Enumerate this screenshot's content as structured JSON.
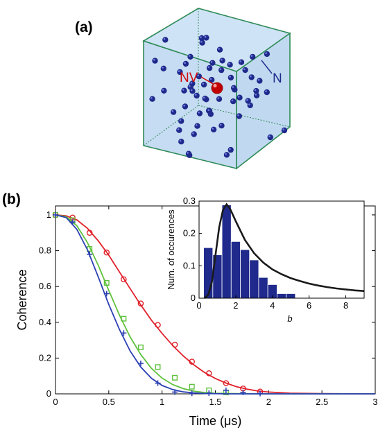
{
  "panel_a": {
    "label": "(a)",
    "nv_label": "NV",
    "n_label": "N",
    "colors": {
      "cube_edge": "#2e8b57",
      "cube_fill": "#c6dcf2",
      "nitrogen": "#1f2a8c",
      "nv": "#d10a0a"
    },
    "nitrogen_atom_count": 64
  },
  "panel_b": {
    "label": "(b)",
    "chart_data": [
      {
        "type": "line",
        "xlabel": "Time (μs)",
        "ylabel": "Coherence",
        "xlim": [
          0,
          3
        ],
        "ylim": [
          0,
          1.05
        ],
        "xticks": [
          "0",
          "0.5",
          "1",
          "1.5",
          "2",
          "2.5",
          "3"
        ],
        "yticks": [
          "0",
          "0.2",
          "0.4",
          "0.6",
          "0.8",
          "1"
        ],
        "grid": false,
        "series": [
          {
            "color": "#e0202a",
            "marker": "circle",
            "points": [
              [
                0,
                1.0
              ],
              [
                0.16,
                0.985
              ],
              [
                0.32,
                0.9
              ],
              [
                0.48,
                0.79
              ],
              [
                0.64,
                0.64
              ],
              [
                0.8,
                0.505
              ],
              [
                0.96,
                0.385
              ],
              [
                1.12,
                0.275
              ],
              [
                1.28,
                0.18
              ],
              [
                1.44,
                0.115
              ],
              [
                1.6,
                0.06
              ],
              [
                1.76,
                0.03
              ],
              [
                1.92,
                0.013
              ]
            ],
            "curve": [
              [
                0,
                1.0
              ],
              [
                0.1,
                0.995
              ],
              [
                0.2,
                0.972
              ],
              [
                0.3,
                0.925
              ],
              [
                0.4,
                0.856
              ],
              [
                0.5,
                0.775
              ],
              [
                0.6,
                0.681
              ],
              [
                0.7,
                0.588
              ],
              [
                0.8,
                0.497
              ],
              [
                0.9,
                0.412
              ],
              [
                1.0,
                0.338
              ],
              [
                1.1,
                0.27
              ],
              [
                1.2,
                0.211
              ],
              [
                1.3,
                0.161
              ],
              [
                1.4,
                0.119
              ],
              [
                1.5,
                0.086
              ],
              [
                1.6,
                0.06
              ],
              [
                1.7,
                0.04
              ],
              [
                1.8,
                0.026
              ],
              [
                1.9,
                0.016
              ],
              [
                2.0,
                0.01
              ],
              [
                2.2,
                0.004
              ],
              [
                2.5,
                0.001
              ],
              [
                3.0,
                0.0
              ]
            ]
          },
          {
            "color": "#5ec13c",
            "marker": "square",
            "points": [
              [
                0,
                1.0
              ],
              [
                0.16,
                0.97
              ],
              [
                0.32,
                0.81
              ],
              [
                0.48,
                0.62
              ],
              [
                0.64,
                0.42
              ],
              [
                0.8,
                0.26
              ],
              [
                0.96,
                0.15
              ],
              [
                1.12,
                0.09
              ],
              [
                1.28,
                0.04
              ],
              [
                1.44,
                0.02
              ],
              [
                1.6,
                0.008
              ]
            ],
            "curve": [
              [
                0,
                1.0
              ],
              [
                0.1,
                0.99
              ],
              [
                0.2,
                0.94
              ],
              [
                0.3,
                0.845
              ],
              [
                0.4,
                0.72
              ],
              [
                0.5,
                0.578
              ],
              [
                0.6,
                0.44
              ],
              [
                0.7,
                0.318
              ],
              [
                0.8,
                0.22
              ],
              [
                0.9,
                0.143
              ],
              [
                1.0,
                0.088
              ],
              [
                1.1,
                0.052
              ],
              [
                1.2,
                0.029
              ],
              [
                1.3,
                0.015
              ],
              [
                1.4,
                0.007
              ],
              [
                1.5,
                0.003
              ],
              [
                1.7,
                0.001
              ],
              [
                2.0,
                0.0
              ],
              [
                3.0,
                0.0
              ]
            ]
          },
          {
            "color": "#2b3fb3",
            "marker": "plus",
            "points": [
              [
                0,
                1.0
              ],
              [
                0.16,
                0.96
              ],
              [
                0.32,
                0.78
              ],
              [
                0.48,
                0.56
              ],
              [
                0.64,
                0.34
              ],
              [
                0.8,
                0.17
              ],
              [
                0.96,
                0.06
              ],
              [
                1.12,
                0.01
              ],
              [
                1.28,
                0.003
              ],
              [
                1.44,
                0.004
              ],
              [
                1.6,
                0.02
              ],
              [
                1.76,
                0.008
              ],
              [
                1.92,
                0.002
              ]
            ],
            "curve": [
              [
                0,
                1.0
              ],
              [
                0.1,
                0.985
              ],
              [
                0.2,
                0.92
              ],
              [
                0.3,
                0.805
              ],
              [
                0.4,
                0.655
              ],
              [
                0.5,
                0.5
              ],
              [
                0.6,
                0.36
              ],
              [
                0.7,
                0.24
              ],
              [
                0.8,
                0.15
              ],
              [
                0.9,
                0.087
              ],
              [
                1.0,
                0.047
              ],
              [
                1.1,
                0.024
              ],
              [
                1.2,
                0.011
              ],
              [
                1.3,
                0.005
              ],
              [
                1.4,
                0.002
              ],
              [
                1.6,
                0.0
              ],
              [
                3.0,
                0.0
              ]
            ]
          }
        ]
      },
      {
        "type": "bar",
        "xlabel": "b",
        "ylabel": "Num. of occurences",
        "xlim": [
          0,
          9
        ],
        "ylim": [
          0,
          0.3
        ],
        "xticks": [
          "0",
          "2",
          "4",
          "6",
          "8"
        ],
        "yticks": [
          "0",
          "0.1",
          "0.2",
          "0.3"
        ],
        "bar_color": "#1f2a8c",
        "bar_width": 0.5,
        "bars": [
          [
            0.5,
            0.156
          ],
          [
            1.0,
            0.134
          ],
          [
            1.5,
            0.288
          ],
          [
            2.0,
            0.175
          ],
          [
            2.5,
            0.15
          ],
          [
            3.0,
            0.118
          ],
          [
            3.5,
            0.064
          ],
          [
            4.0,
            0.042
          ],
          [
            4.5,
            0.014
          ],
          [
            5.0,
            0.014
          ]
        ],
        "curve_color": "#1a1a1a",
        "curve": [
          [
            0.3,
            0.0
          ],
          [
            0.5,
            0.01
          ],
          [
            0.7,
            0.05
          ],
          [
            0.9,
            0.135
          ],
          [
            1.1,
            0.22
          ],
          [
            1.3,
            0.272
          ],
          [
            1.5,
            0.29
          ],
          [
            1.7,
            0.275
          ],
          [
            2.0,
            0.238
          ],
          [
            2.5,
            0.18
          ],
          [
            3.0,
            0.139
          ],
          [
            3.5,
            0.11
          ],
          [
            4.0,
            0.089
          ],
          [
            4.5,
            0.074
          ],
          [
            5.0,
            0.062
          ],
          [
            5.5,
            0.053
          ],
          [
            6.0,
            0.045
          ],
          [
            6.5,
            0.039
          ],
          [
            7.0,
            0.034
          ],
          [
            7.5,
            0.03
          ],
          [
            8.0,
            0.027
          ],
          [
            8.5,
            0.024
          ],
          [
            9.0,
            0.022
          ]
        ]
      }
    ]
  }
}
